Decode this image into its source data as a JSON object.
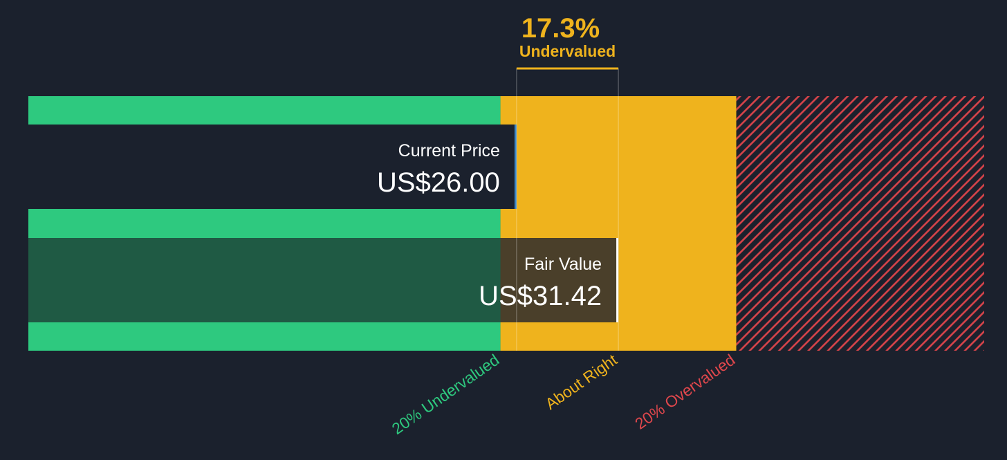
{
  "chart_data": {
    "type": "bar",
    "title": "",
    "xlabel": "",
    "ylabel": "",
    "discount": {
      "percent_label": "17.3%",
      "status_label": "Undervalued",
      "value": 17.3
    },
    "current_price": {
      "label": "Current Price",
      "value_label": "US$26.00",
      "value": 26.0
    },
    "fair_value": {
      "label": "Fair Value",
      "value_label": "US$31.42",
      "value": 31.42
    },
    "zones": [
      {
        "name": "undervalued",
        "label": "20% Undervalued",
        "from": 0,
        "to": 25.14
      },
      {
        "name": "about-right",
        "label": "About Right",
        "from": 25.14,
        "to": 37.7
      },
      {
        "name": "overvalued",
        "label": "20% Overvalued",
        "from": 37.7,
        "to": 50.9
      }
    ],
    "xlim": [
      0,
      50.9
    ],
    "grid": false,
    "legend": "none"
  },
  "colors": {
    "background": "#1b212d",
    "undervalued": "#2ec97f",
    "about_right": "#efb31d",
    "overvalued": "#e0474c",
    "current_price_marker": "#3a86c8",
    "fair_value_marker": "#ffffff",
    "text": "#ffffff"
  }
}
